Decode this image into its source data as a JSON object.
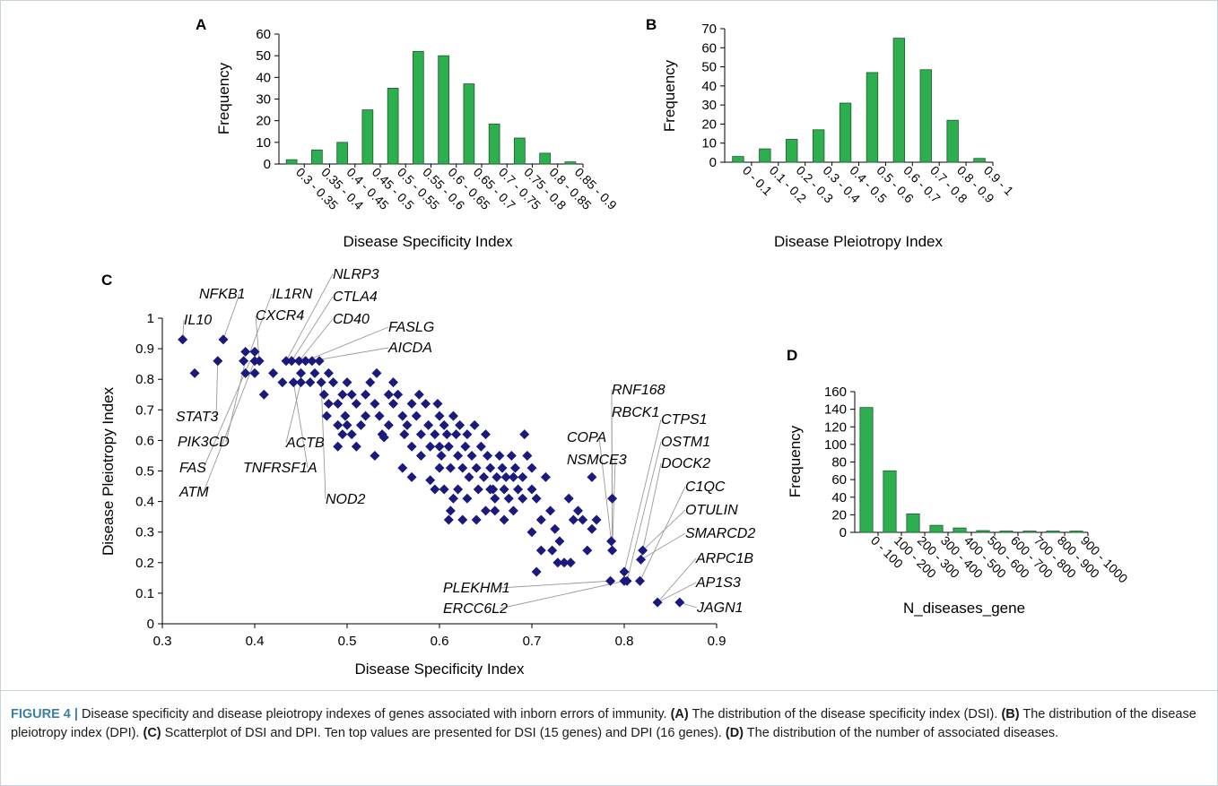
{
  "colors": {
    "bar_fill": "#2eaf4f",
    "bar_stroke": "#1d5a2e",
    "marker": "#1a1a7e",
    "leader_line": "#9a9a9a",
    "caption_label": "#3a7fa5",
    "frame": "#c8d4dc"
  },
  "chart_data": [
    {
      "panel": "A",
      "type": "bar",
      "categories": [
        "0.3 - 0.35",
        "0.35 - 0.4",
        "0.4 - 0.45",
        "0.45 - 0.5",
        "0.5 - 0.55",
        "0.55 - 0.6",
        "0.6 - 0.65",
        "0.65 - 0.7",
        "0.7 - 0.75",
        "0.75 - 0.8",
        "0.8 - 0.85",
        "0.85 - 0.9"
      ],
      "values": [
        2,
        6.5,
        10,
        25,
        35,
        52,
        50,
        37,
        18.5,
        12,
        5,
        1
      ],
      "xlabel": "Disease Specificity Index",
      "ylabel": "Frequency",
      "ylim": [
        0,
        60
      ],
      "yticks": [
        "0",
        "10",
        "20",
        "30",
        "40",
        "50",
        "60"
      ]
    },
    {
      "panel": "B",
      "type": "bar",
      "categories": [
        "0 - 0.1",
        "0.1 - 0.2",
        "0.2 - 0.3",
        "0.3 - 0.4",
        "0.4 - 0.5",
        "0.5 - 0.6",
        "0.6 - 0.7",
        "0.7 - 0.8",
        "0.8 - 0.9",
        "0.9 - 1"
      ],
      "values": [
        3,
        7,
        12,
        17,
        31,
        47,
        65,
        48.5,
        22,
        2
      ],
      "xlabel": "Disease Pleiotropy Index",
      "ylabel": "Frequency",
      "ylim": [
        0,
        70
      ],
      "yticks": [
        "0",
        "10",
        "20",
        "30",
        "40",
        "50",
        "60",
        "70"
      ]
    },
    {
      "panel": "C",
      "type": "scatter",
      "xlabel": "Disease Specificity Index",
      "ylabel": "Disease Pleiotropy Index",
      "xlim": [
        0.3,
        0.9
      ],
      "ylim": [
        0,
        1
      ],
      "xticks": [
        "0.3",
        "0.4",
        "0.5",
        "0.6",
        "0.7",
        "0.8",
        "0.9"
      ],
      "yticks": [
        "0",
        "0.1",
        "0.2",
        "0.3",
        "0.4",
        "0.5",
        "0.6",
        "0.7",
        "0.8",
        "0.9",
        "1"
      ],
      "points": [
        [
          0.322,
          0.93
        ],
        [
          0.366,
          0.93
        ],
        [
          0.335,
          0.82
        ],
        [
          0.36,
          0.86
        ],
        [
          0.39,
          0.89
        ],
        [
          0.4,
          0.89
        ],
        [
          0.388,
          0.86
        ],
        [
          0.4,
          0.86
        ],
        [
          0.405,
          0.86
        ],
        [
          0.39,
          0.82
        ],
        [
          0.4,
          0.82
        ],
        [
          0.41,
          0.75
        ],
        [
          0.42,
          0.82
        ],
        [
          0.43,
          0.79
        ],
        [
          0.434,
          0.86
        ],
        [
          0.44,
          0.86
        ],
        [
          0.448,
          0.86
        ],
        [
          0.455,
          0.86
        ],
        [
          0.462,
          0.86
        ],
        [
          0.442,
          0.79
        ],
        [
          0.45,
          0.79
        ],
        [
          0.46,
          0.79
        ],
        [
          0.45,
          0.82
        ],
        [
          0.465,
          0.82
        ],
        [
          0.47,
          0.86
        ],
        [
          0.472,
          0.79
        ],
        [
          0.48,
          0.82
        ],
        [
          0.475,
          0.75
        ],
        [
          0.485,
          0.79
        ],
        [
          0.478,
          0.68
        ],
        [
          0.49,
          0.72
        ],
        [
          0.495,
          0.75
        ],
        [
          0.5,
          0.79
        ],
        [
          0.505,
          0.75
        ],
        [
          0.49,
          0.65
        ],
        [
          0.498,
          0.68
        ],
        [
          0.51,
          0.72
        ],
        [
          0.515,
          0.65
        ],
        [
          0.505,
          0.62
        ],
        [
          0.49,
          0.58
        ],
        [
          0.52,
          0.75
        ],
        [
          0.525,
          0.79
        ],
        [
          0.532,
          0.82
        ],
        [
          0.53,
          0.72
        ],
        [
          0.535,
          0.68
        ],
        [
          0.538,
          0.62
        ],
        [
          0.545,
          0.65
        ],
        [
          0.55,
          0.72
        ],
        [
          0.55,
          0.79
        ],
        [
          0.555,
          0.75
        ],
        [
          0.56,
          0.68
        ],
        [
          0.562,
          0.62
        ],
        [
          0.565,
          0.65
        ],
        [
          0.57,
          0.72
        ],
        [
          0.57,
          0.58
        ],
        [
          0.575,
          0.68
        ],
        [
          0.578,
          0.75
        ],
        [
          0.58,
          0.62
        ],
        [
          0.585,
          0.72
        ],
        [
          0.588,
          0.65
        ],
        [
          0.59,
          0.58
        ],
        [
          0.595,
          0.62
        ],
        [
          0.598,
          0.72
        ],
        [
          0.6,
          0.68
        ],
        [
          0.602,
          0.55
        ],
        [
          0.605,
          0.65
        ],
        [
          0.608,
          0.62
        ],
        [
          0.61,
          0.58
        ],
        [
          0.612,
          0.51
        ],
        [
          0.615,
          0.68
        ],
        [
          0.618,
          0.62
        ],
        [
          0.62,
          0.55
        ],
        [
          0.622,
          0.65
        ],
        [
          0.625,
          0.51
        ],
        [
          0.628,
          0.58
        ],
        [
          0.63,
          0.62
        ],
        [
          0.632,
          0.48
        ],
        [
          0.635,
          0.55
        ],
        [
          0.638,
          0.65
        ],
        [
          0.64,
          0.51
        ],
        [
          0.642,
          0.44
        ],
        [
          0.645,
          0.58
        ],
        [
          0.648,
          0.48
        ],
        [
          0.65,
          0.62
        ],
        [
          0.652,
          0.55
        ],
        [
          0.655,
          0.51
        ],
        [
          0.658,
          0.44
        ],
        [
          0.66,
          0.41
        ],
        [
          0.662,
          0.48
        ],
        [
          0.665,
          0.55
        ],
        [
          0.668,
          0.51
        ],
        [
          0.67,
          0.44
        ],
        [
          0.672,
          0.48
        ],
        [
          0.675,
          0.41
        ],
        [
          0.678,
          0.55
        ],
        [
          0.68,
          0.48
        ],
        [
          0.682,
          0.51
        ],
        [
          0.685,
          0.44
        ],
        [
          0.69,
          0.48
        ],
        [
          0.692,
          0.62
        ],
        [
          0.695,
          0.55
        ],
        [
          0.7,
          0.51
        ],
        [
          0.705,
          0.41
        ],
        [
          0.71,
          0.34
        ],
        [
          0.715,
          0.48
        ],
        [
          0.72,
          0.37
        ],
        [
          0.722,
          0.24
        ],
        [
          0.725,
          0.31
        ],
        [
          0.73,
          0.27
        ],
        [
          0.735,
          0.2
        ],
        [
          0.74,
          0.41
        ],
        [
          0.745,
          0.34
        ],
        [
          0.75,
          0.37
        ],
        [
          0.755,
          0.34
        ],
        [
          0.76,
          0.24
        ],
        [
          0.765,
          0.31
        ],
        [
          0.77,
          0.34
        ],
        [
          0.705,
          0.17
        ],
        [
          0.71,
          0.24
        ],
        [
          0.728,
          0.2
        ],
        [
          0.742,
          0.2
        ],
        [
          0.7,
          0.3
        ],
        [
          0.6,
          0.51
        ],
        [
          0.605,
          0.44
        ],
        [
          0.612,
          0.37
        ],
        [
          0.615,
          0.41
        ],
        [
          0.61,
          0.34
        ],
        [
          0.625,
          0.34
        ],
        [
          0.595,
          0.44
        ],
        [
          0.59,
          0.47
        ],
        [
          0.6,
          0.58
        ],
        [
          0.56,
          0.51
        ],
        [
          0.57,
          0.48
        ],
        [
          0.58,
          0.55
        ],
        [
          0.54,
          0.61
        ],
        [
          0.545,
          0.75
        ],
        [
          0.52,
          0.68
        ],
        [
          0.51,
          0.58
        ],
        [
          0.5,
          0.65
        ],
        [
          0.495,
          0.62
        ],
        [
          0.48,
          0.72
        ],
        [
          0.53,
          0.55
        ],
        [
          0.62,
          0.44
        ],
        [
          0.63,
          0.41
        ],
        [
          0.65,
          0.37
        ],
        [
          0.66,
          0.37
        ],
        [
          0.67,
          0.34
        ],
        [
          0.68,
          0.37
        ],
        [
          0.69,
          0.41
        ],
        [
          0.7,
          0.44
        ],
        [
          0.64,
          0.34
        ],
        [
          0.655,
          0.44
        ],
        [
          0.765,
          0.48
        ],
        [
          0.787,
          0.41
        ],
        [
          0.786,
          0.27
        ],
        [
          0.787,
          0.24
        ],
        [
          0.8,
          0.17
        ],
        [
          0.803,
          0.14
        ],
        [
          0.8,
          0.14
        ],
        [
          0.82,
          0.24
        ],
        [
          0.818,
          0.21
        ],
        [
          0.817,
          0.14
        ],
        [
          0.785,
          0.14
        ],
        [
          0.836,
          0.07
        ],
        [
          0.86,
          0.07
        ]
      ],
      "gene_labels": [
        "IL10",
        "NFKB1",
        "IL1RN",
        "CXCR4",
        "NLRP3",
        "CTLA4",
        "CD40",
        "FASLG",
        "AICDA",
        "STAT3",
        "PIK3CD",
        "FAS",
        "ATM",
        "ACTB",
        "TNFRSF1A",
        "NOD2",
        "RNF168",
        "RBCK1",
        "COPA",
        "NSMCE3",
        "CTPS1",
        "OSTM1",
        "DOCK2",
        "C1QC",
        "OTULIN",
        "SMARCD2",
        "ARPC1B",
        "AP1S3",
        "PLEKHM1",
        "ERCC6L2",
        "JAGN1"
      ]
    },
    {
      "panel": "D",
      "type": "bar",
      "categories": [
        "0 - 100",
        "100 - 200",
        "200 - 300",
        "300 - 400",
        "400 - 500",
        "500 - 600",
        "600 - 700",
        "700 - 800",
        "800 - 900",
        "900 - 1000"
      ],
      "values": [
        142,
        70,
        21,
        8,
        5,
        2,
        1.5,
        1.5,
        1.5,
        1.5
      ],
      "xlabel": "N_diseases_gene",
      "ylabel": "Frequency",
      "ylim": [
        0,
        160
      ],
      "yticks": [
        "0",
        "20",
        "40",
        "60",
        "80",
        "100",
        "120",
        "140",
        "160"
      ]
    }
  ],
  "caption": {
    "label": "FIGURE 4 |",
    "intro": " Disease specificity and disease pleiotropy indexes of genes associated with inborn errors of immunity. ",
    "a_ref": "(A)",
    "a_text": " The distribution of the disease specificity index (DSI). ",
    "b_ref": "(B)",
    "b_text": " The distribution of the disease pleiotropy index (DPI). ",
    "c_ref": "(C)",
    "c_text": " Scatterplot of DSI and DPI. Ten top values are presented for DSI (15 genes) and DPI (16 genes). ",
    "d_ref": "(D)",
    "d_text": " The distribution of the number of associated diseases."
  }
}
